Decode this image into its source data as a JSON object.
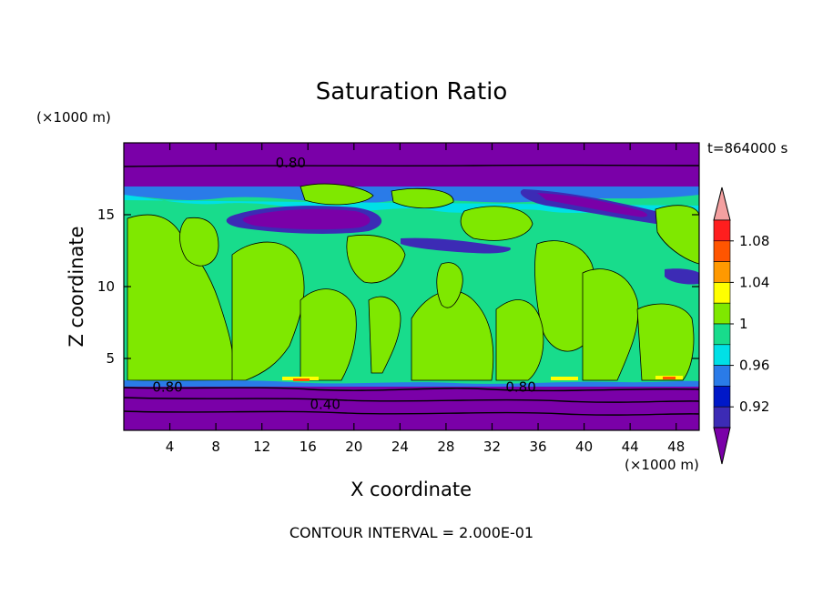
{
  "chart_data": {
    "type": "contour",
    "title": "Saturation Ratio",
    "xlabel": "X coordinate",
    "ylabel": "Z coordinate",
    "x_unit": "(×1000 m)",
    "y_unit": "(×1000 m)",
    "time_label": "t=864000 s",
    "footer": "CONTOUR INTERVAL = 2.000E-01",
    "xlim": [
      0,
      50
    ],
    "ylim": [
      0,
      20
    ],
    "x_ticks": [
      4,
      8,
      12,
      16,
      20,
      24,
      28,
      32,
      36,
      40,
      44,
      48
    ],
    "y_ticks": [
      5,
      10,
      15
    ],
    "colorbar": {
      "levels": [
        0.92,
        0.94,
        0.96,
        0.98,
        1.0,
        1.02,
        1.04,
        1.06,
        1.08,
        1.1
      ],
      "labels": [
        "0.92",
        "0.96",
        "1",
        "1.04",
        "1.08"
      ],
      "colors": [
        "#7a00a8",
        "#3c2bb5",
        "#0018c8",
        "#2a7be8",
        "#00e0e6",
        "#18dc8c",
        "#7fe800",
        "#ffff00",
        "#ff9900",
        "#ff5500",
        "#ff1e1e",
        "#f4a0a0"
      ]
    },
    "contour_labels": [
      "0.80",
      "0.80",
      "0.80",
      "0.40"
    ],
    "contour_label_positions": [
      {
        "text": "0.80",
        "x": 14.5,
        "z": 18.6
      },
      {
        "text": "0.80",
        "x": 3.8,
        "z": 3.0
      },
      {
        "text": "0.80",
        "x": 34.5,
        "z": 3.0
      },
      {
        "text": "0.40",
        "x": 17.5,
        "z": 1.8
      }
    ]
  }
}
